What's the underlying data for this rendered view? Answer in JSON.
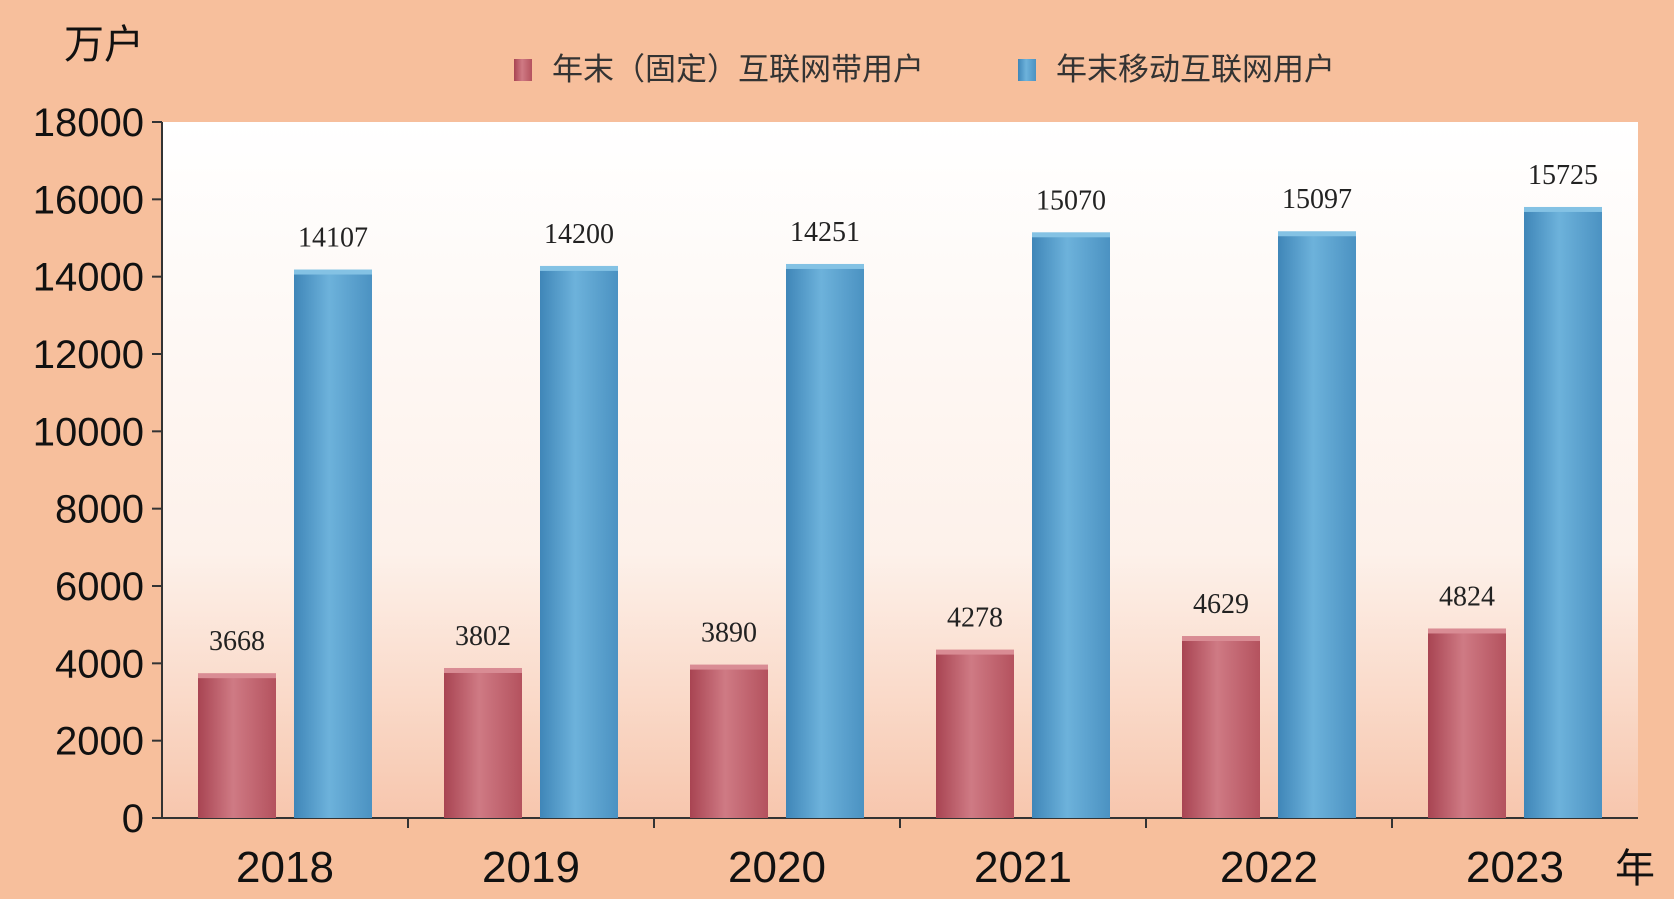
{
  "chart_data": {
    "type": "bar",
    "title": "",
    "xlabel": "年",
    "ylabel": "万户",
    "categories": [
      "2018",
      "2019",
      "2020",
      "2021",
      "2022",
      "2023"
    ],
    "series": [
      {
        "name": "年末（固定）互联网带用户",
        "color": "#c2636e",
        "values": [
          3668,
          3802,
          3890,
          4278,
          4629,
          4824
        ]
      },
      {
        "name": "年末移动互联网用户",
        "color": "#5aa2cc",
        "values": [
          14107,
          14200,
          14251,
          15070,
          15097,
          15725
        ]
      }
    ],
    "ylim": [
      0,
      18000
    ],
    "yticks": [
      "0",
      "2000",
      "4000",
      "6000",
      "8000",
      "10000",
      "12000",
      "14000",
      "16000",
      "18000"
    ],
    "legend": "top-center",
    "grid": false
  }
}
